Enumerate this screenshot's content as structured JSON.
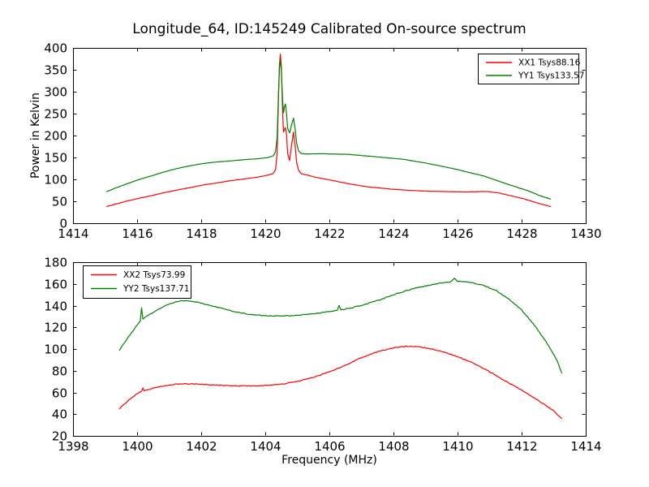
{
  "figure": {
    "background": "#ffffff",
    "text_color": "#000000"
  },
  "chart_data": [
    {
      "type": "line",
      "title": "Longitude_64, ID:145249 Calibrated On-source spectrum",
      "xlabel": "",
      "ylabel": "Power in Kelvin",
      "xlim": [
        1414,
        1430
      ],
      "ylim": [
        0,
        400
      ],
      "xticks": [
        1414,
        1416,
        1418,
        1420,
        1422,
        1424,
        1426,
        1428,
        1430
      ],
      "yticks": [
        0,
        50,
        100,
        150,
        200,
        250,
        300,
        350,
        400
      ],
      "grid": false,
      "legend": {
        "position": "upper right"
      },
      "series": [
        {
          "name": "XX1",
          "label": "XX1 Tsys88.16",
          "color": "#ff0000",
          "points": [
            [
              1415.05,
              38
            ],
            [
              1415.35,
              44
            ],
            [
              1415.65,
              50
            ],
            [
              1415.95,
              55
            ],
            [
              1416.4,
              62
            ],
            [
              1416.8,
              69
            ],
            [
              1417.2,
              75
            ],
            [
              1417.65,
              81
            ],
            [
              1418.05,
              87
            ],
            [
              1418.5,
              92
            ],
            [
              1418.9,
              97
            ],
            [
              1419.35,
              101
            ],
            [
              1419.75,
              105
            ],
            [
              1420.1,
              110
            ],
            [
              1420.25,
              114
            ],
            [
              1420.32,
              122
            ],
            [
              1420.37,
              160
            ],
            [
              1420.41,
              280
            ],
            [
              1420.44,
              360
            ],
            [
              1420.47,
              386
            ],
            [
              1420.5,
              360
            ],
            [
              1420.54,
              255
            ],
            [
              1420.57,
              208
            ],
            [
              1420.6,
              214
            ],
            [
              1420.63,
              218
            ],
            [
              1420.66,
              206
            ],
            [
              1420.7,
              158
            ],
            [
              1420.76,
              143
            ],
            [
              1420.81,
              172
            ],
            [
              1420.88,
              208
            ],
            [
              1420.93,
              178
            ],
            [
              1420.98,
              138
            ],
            [
              1421.04,
              121
            ],
            [
              1421.12,
              113
            ],
            [
              1421.3,
              110
            ],
            [
              1421.5,
              106
            ],
            [
              1422,
              99
            ],
            [
              1422.6,
              90
            ],
            [
              1423.2,
              83
            ],
            [
              1423.9,
              78
            ],
            [
              1424.5,
              75
            ],
            [
              1425.1,
              73
            ],
            [
              1425.7,
              72
            ],
            [
              1426.3,
              71.5
            ],
            [
              1426.9,
              72.5
            ],
            [
              1427.3,
              69
            ],
            [
              1427.7,
              62
            ],
            [
              1428.1,
              55
            ],
            [
              1428.5,
              46
            ],
            [
              1428.9,
              38
            ]
          ]
        },
        {
          "name": "YY1",
          "label": "YY1 Tsys133.57",
          "color": "#008000",
          "points": [
            [
              1415.05,
              72
            ],
            [
              1415.35,
              81
            ],
            [
              1415.65,
              89
            ],
            [
              1415.95,
              97
            ],
            [
              1416.4,
              107
            ],
            [
              1416.8,
              116
            ],
            [
              1417.2,
              124
            ],
            [
              1417.65,
              131
            ],
            [
              1418.05,
              136
            ],
            [
              1418.5,
              140
            ],
            [
              1418.9,
              142
            ],
            [
              1419.35,
              145
            ],
            [
              1419.75,
              147
            ],
            [
              1420.1,
              150
            ],
            [
              1420.25,
              154
            ],
            [
              1420.32,
              163
            ],
            [
              1420.37,
              195
            ],
            [
              1420.41,
              290
            ],
            [
              1420.44,
              350
            ],
            [
              1420.47,
              374
            ],
            [
              1420.5,
              350
            ],
            [
              1420.54,
              282
            ],
            [
              1420.57,
              252
            ],
            [
              1420.6,
              266
            ],
            [
              1420.63,
              272
            ],
            [
              1420.66,
              252
            ],
            [
              1420.7,
              216
            ],
            [
              1420.76,
              206
            ],
            [
              1420.81,
              221
            ],
            [
              1420.88,
              240
            ],
            [
              1420.93,
              216
            ],
            [
              1420.98,
              182
            ],
            [
              1421.04,
              165
            ],
            [
              1421.12,
              159
            ],
            [
              1421.3,
              158
            ],
            [
              1421.8,
              158.5
            ],
            [
              1422.6,
              157
            ],
            [
              1423.4,
              152
            ],
            [
              1424.3,
              146
            ],
            [
              1425.1,
              136
            ],
            [
              1425.9,
              124
            ],
            [
              1426.8,
              108
            ],
            [
              1427.6,
              88
            ],
            [
              1428.2,
              74
            ],
            [
              1428.6,
              62
            ],
            [
              1428.9,
              55
            ]
          ]
        }
      ]
    },
    {
      "type": "line",
      "title": "",
      "xlabel": "Frequency (MHz)",
      "ylabel": "",
      "xlim": [
        1398,
        1414
      ],
      "ylim": [
        20,
        180
      ],
      "xticks": [
        1398,
        1400,
        1402,
        1404,
        1406,
        1408,
        1410,
        1412,
        1414
      ],
      "yticks": [
        20,
        40,
        60,
        80,
        100,
        120,
        140,
        160,
        180
      ],
      "grid": false,
      "legend": {
        "position": "upper left"
      },
      "series": [
        {
          "name": "XX2",
          "label": "XX2 Tsys73.99",
          "color": "#ff0000",
          "points": [
            [
              1399.45,
              45
            ],
            [
              1399.7,
              52
            ],
            [
              1400,
              59
            ],
            [
              1400.14,
              61
            ],
            [
              1400.18,
              64.5
            ],
            [
              1400.22,
              61.5
            ],
            [
              1400.5,
              64
            ],
            [
              1400.9,
              66.5
            ],
            [
              1401.3,
              68
            ],
            [
              1401.7,
              67.8
            ],
            [
              1402.1,
              67.3
            ],
            [
              1402.6,
              66.6
            ],
            [
              1403.1,
              66.1
            ],
            [
              1403.6,
              66
            ],
            [
              1404.1,
              66.6
            ],
            [
              1404.6,
              68
            ],
            [
              1405,
              70
            ],
            [
              1405.5,
              74
            ],
            [
              1406,
              79
            ],
            [
              1406.5,
              85
            ],
            [
              1407,
              92
            ],
            [
              1407.5,
              97.5
            ],
            [
              1408,
              101
            ],
            [
              1408.4,
              102.5
            ],
            [
              1408.8,
              102
            ],
            [
              1409.2,
              100
            ],
            [
              1409.6,
              97
            ],
            [
              1410,
              93
            ],
            [
              1410.5,
              87
            ],
            [
              1411,
              79
            ],
            [
              1411.5,
              70.5
            ],
            [
              1412,
              62
            ],
            [
              1412.5,
              53
            ],
            [
              1413,
              43
            ],
            [
              1413.25,
              36
            ]
          ]
        },
        {
          "name": "YY2",
          "label": "YY2 Tsys137.71",
          "color": "#008000",
          "points": [
            [
              1399.45,
              99
            ],
            [
              1399.7,
              110
            ],
            [
              1399.95,
              120
            ],
            [
              1400.1,
              126
            ],
            [
              1400.14,
              138
            ],
            [
              1400.18,
              128
            ],
            [
              1400.4,
              132
            ],
            [
              1400.7,
              137
            ],
            [
              1401,
              141.5
            ],
            [
              1401.3,
              144
            ],
            [
              1401.6,
              144.5
            ],
            [
              1401.9,
              143
            ],
            [
              1402.3,
              140
            ],
            [
              1402.7,
              137
            ],
            [
              1403.1,
              134
            ],
            [
              1403.5,
              132
            ],
            [
              1404,
              130.5
            ],
            [
              1404.5,
              130.3
            ],
            [
              1405,
              131
            ],
            [
              1405.5,
              132.5
            ],
            [
              1406,
              134.5
            ],
            [
              1406.25,
              135.5
            ],
            [
              1406.3,
              140
            ],
            [
              1406.36,
              136
            ],
            [
              1406.7,
              138
            ],
            [
              1407.1,
              141
            ],
            [
              1407.6,
              145.5
            ],
            [
              1408.1,
              151
            ],
            [
              1408.6,
              155.5
            ],
            [
              1409,
              158
            ],
            [
              1409.4,
              160.5
            ],
            [
              1409.8,
              162
            ],
            [
              1409.9,
              165
            ],
            [
              1410,
              162.5
            ],
            [
              1410.4,
              161.5
            ],
            [
              1410.8,
              158.5
            ],
            [
              1411.2,
              154
            ],
            [
              1411.6,
              146
            ],
            [
              1412,
              136
            ],
            [
              1412.4,
              122
            ],
            [
              1412.8,
              105
            ],
            [
              1413.1,
              90
            ],
            [
              1413.25,
              78
            ]
          ]
        }
      ]
    }
  ]
}
